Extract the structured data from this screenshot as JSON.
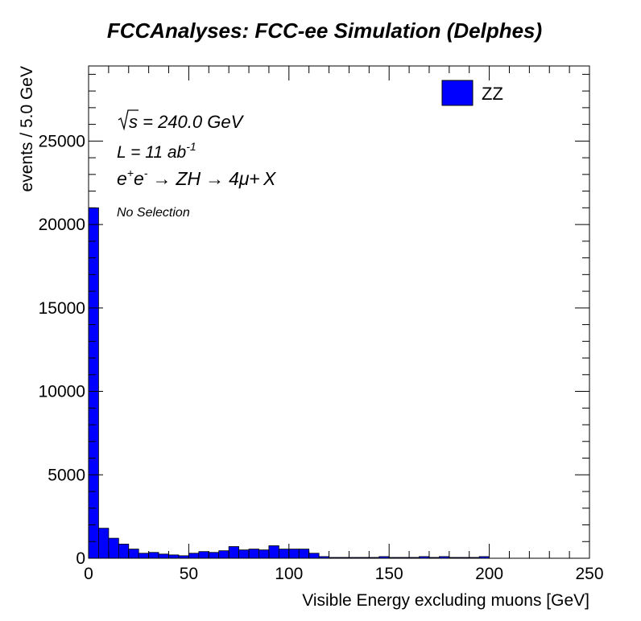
{
  "chart_data": {
    "type": "bar",
    "title": "FCCAnalyses: FCC-ee Simulation (Delphes)",
    "xlabel": "Visible Energy excluding muons [GeV]",
    "ylabel": "events / 5.0 GeV",
    "xlim": [
      0,
      250
    ],
    "ylim": [
      0,
      29500
    ],
    "bin_width": 5,
    "x_ticks": [
      0,
      50,
      100,
      150,
      200,
      250
    ],
    "y_ticks": [
      0,
      5000,
      10000,
      15000,
      20000,
      25000
    ],
    "grid": false,
    "legend_position": "top-right",
    "annotations": {
      "sqrt_s": {
        "prefix": "s",
        "value": " = 240.0 GeV"
      },
      "lumi": {
        "base": "L = 11 ab",
        "exponent": "-1"
      },
      "process": {
        "e1": "e",
        "sup1": "+",
        "e2": "e",
        "sup2": "-",
        "arrow1": "→",
        "zh": "ZH",
        "arrow2": "→",
        "fourmu": "4μ",
        "plus": "+",
        "x": "X"
      },
      "selection": "No Selection"
    },
    "series": [
      {
        "name": "ZZ",
        "color": "#0000ff",
        "bin_edges_low": [
          0,
          5,
          10,
          15,
          20,
          25,
          30,
          35,
          40,
          45,
          50,
          55,
          60,
          65,
          70,
          75,
          80,
          85,
          90,
          95,
          100,
          105,
          110,
          115,
          120,
          125,
          130,
          135,
          140,
          145,
          150,
          155,
          160,
          165,
          170,
          175,
          180,
          185,
          190,
          195
        ],
        "values": [
          21000,
          1800,
          1200,
          850,
          550,
          300,
          350,
          250,
          200,
          150,
          300,
          400,
          350,
          450,
          700,
          500,
          550,
          500,
          750,
          550,
          550,
          550,
          300,
          100,
          50,
          50,
          50,
          50,
          50,
          100,
          50,
          50,
          50,
          100,
          50,
          100,
          50,
          50,
          50,
          100
        ]
      }
    ]
  }
}
